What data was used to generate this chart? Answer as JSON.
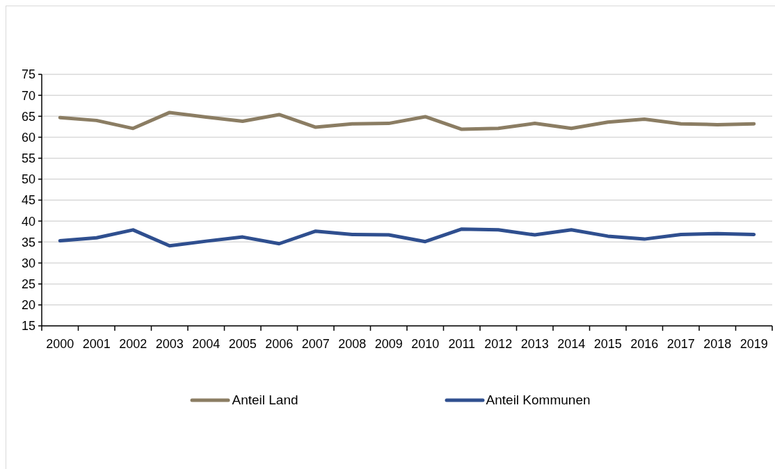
{
  "chart_data": {
    "type": "line",
    "categories": [
      "2000",
      "2001",
      "2002",
      "2003",
      "2004",
      "2005",
      "2006",
      "2007",
      "2008",
      "2009",
      "2010",
      "2011",
      "2012",
      "2013",
      "2014",
      "2015",
      "2016",
      "2017",
      "2018",
      "2019"
    ],
    "series": [
      {
        "name": "Anteil Land",
        "color": "#8b7d63",
        "values": [
          64.7,
          64.0,
          62.1,
          65.9,
          64.8,
          63.8,
          65.4,
          62.4,
          63.2,
          63.3,
          64.9,
          61.9,
          62.1,
          63.3,
          62.1,
          63.6,
          64.3,
          63.2,
          63.0,
          63.2
        ]
      },
      {
        "name": "Anteil Kommunen",
        "color": "#2f4f8f",
        "values": [
          35.3,
          36.0,
          37.9,
          34.1,
          35.2,
          36.2,
          34.6,
          37.6,
          36.8,
          36.7,
          35.1,
          38.1,
          37.9,
          36.7,
          37.9,
          36.4,
          35.7,
          36.8,
          37.0,
          36.8
        ]
      }
    ],
    "ylim": [
      15,
      75
    ],
    "yticks": [
      15,
      20,
      25,
      30,
      35,
      40,
      45,
      50,
      55,
      60,
      65,
      70,
      75
    ],
    "grid": "y",
    "legend": "bottom",
    "marker": "none",
    "line_style": "solid"
  }
}
